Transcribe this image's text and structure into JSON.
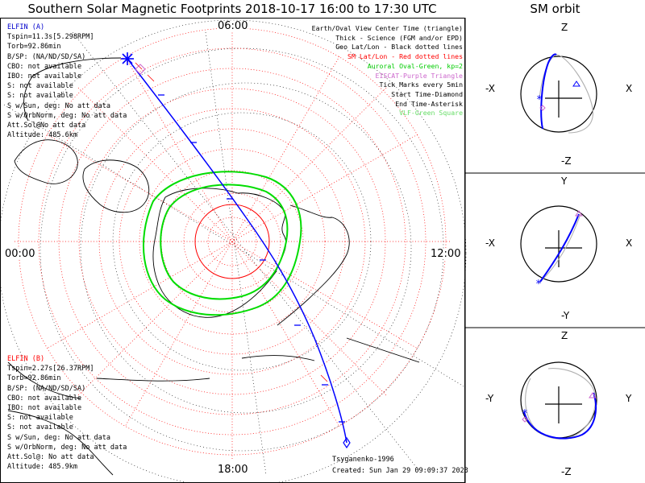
{
  "title": "Southern Solar Magnetic Footprints 2018-10-17 16:00 to 17:30 UTC",
  "sm_title": "SM orbit",
  "clock_labels": {
    "top": "06:00",
    "left": "00:00",
    "right": "12:00",
    "bottom": "18:00"
  },
  "elfin_a": {
    "header": "ELFIN (A)",
    "color": "#0000cc",
    "lines": [
      "Tspin=11.3s[5.298RPM]",
      "Torb=92.86min",
      "B/SP: (NA/ND/SD/SA)",
      "CBO: not available",
      "IBO: not available",
      "S: not available",
      "S: not available",
      "S w/Sun, deg: No att data",
      "S w/OrbNorm, deg: No att data",
      "Att.Sol@No att data",
      "Altitude: 485.6km"
    ]
  },
  "elfin_b": {
    "header": "ELFIN (B)",
    "color": "#ff0000",
    "lines": [
      "Tspin=2.27s[26.37RPM]",
      "Torb=92.86min",
      "B/SP: (NA/ND/SD/SA)",
      "CBO: not available",
      "IBO: not available",
      "S: not available",
      "S: not available",
      "S w/Sun, deg: No att data",
      "S w/OrbNorm, deg: No att data",
      "Att.Sol@: No att data",
      "Altitude: 485.9km"
    ]
  },
  "legend": [
    {
      "text": "Earth/Oval View Center Time (triangle)",
      "color": "#000000"
    },
    {
      "text": "Thick - Science (FGM and/or EPD)",
      "color": "#000000"
    },
    {
      "text": "Geo Lat/Lon - Black dotted lines",
      "color": "#000000"
    },
    {
      "text": "SM Lat/Lon - Red dotted lines",
      "color": "#ff0000"
    },
    {
      "text": "Auroral Oval-Green, kp=2",
      "color": "#00cc00"
    },
    {
      "text": "EISCAT-Purple Triangle",
      "color": "#cc66cc"
    },
    {
      "text": "Tick Marks every 5min",
      "color": "#000000"
    },
    {
      "text": "Start Time-Diamond",
      "color": "#000000"
    },
    {
      "text": "End Time-Asterisk",
      "color": "#000000"
    },
    {
      "text": "VLF-Green Square",
      "color": "#66dd66"
    }
  ],
  "footer": {
    "credit": "Tsyganenko-1996",
    "created": "Created: Sun Jan 29 09:09:37 2023"
  },
  "sm_panels": [
    {
      "top": "Z",
      "bottom": "-Z",
      "left": "-X",
      "right": "X"
    },
    {
      "top": "Y",
      "bottom": "-Y",
      "left": "-X",
      "right": "X"
    },
    {
      "top": "Z",
      "bottom": "-Z",
      "left": "-Y",
      "right": "Y"
    }
  ],
  "colors": {
    "blue_track": "#0000ff",
    "sm_grid": "#ff0000",
    "oval": "#00dd00",
    "coast": "#000000"
  }
}
